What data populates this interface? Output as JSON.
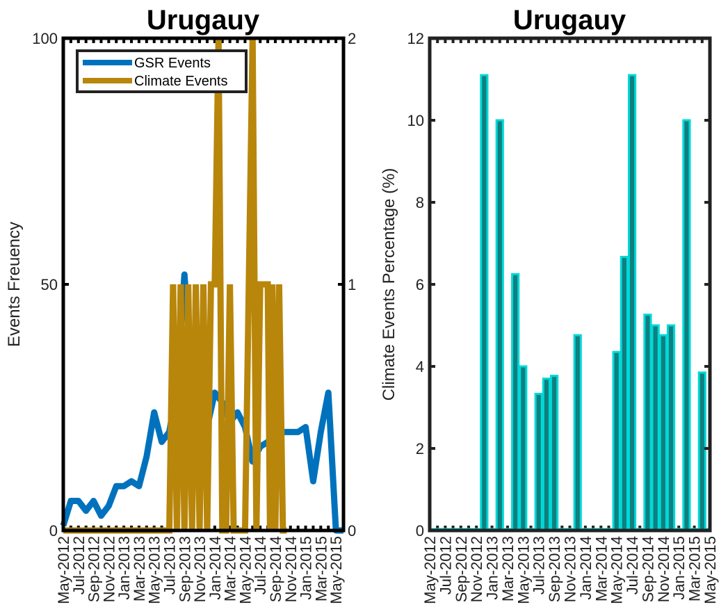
{
  "chart_data": [
    {
      "type": "line",
      "title": "Urugauy",
      "ylabel": "Events Freuency",
      "ylim": [
        0,
        100
      ],
      "yticks": [
        "0",
        "50",
        "100"
      ],
      "y2lim": [
        0,
        2
      ],
      "y2ticks": [
        "0",
        "1",
        "2"
      ],
      "xtick_labels": [
        "May-2012",
        "Jul-2012",
        "Sep-2012",
        "Nov-2012",
        "Jan-2013",
        "Mar-2013",
        "May-2013",
        "Jul-2013",
        "Sep-2013",
        "Nov-2013",
        "Jan-2014",
        "Mar-2014",
        "May-2014",
        "Jul-2014",
        "Sep-2014",
        "Nov-2014",
        "Jan-2015",
        "Mar-2015",
        "May-2015"
      ],
      "legend": {
        "position": "top-left",
        "entries": [
          "GSR Events",
          "Climate Events"
        ]
      },
      "series": [
        {
          "name": "GSR Events",
          "axis": "left",
          "color": "#0072bd",
          "values": [
            1,
            6,
            6,
            4,
            6,
            3,
            5,
            9,
            9,
            10,
            9,
            15,
            24,
            18,
            20,
            29,
            52,
            30,
            25,
            21,
            28,
            26,
            22,
            24,
            21,
            14,
            17,
            18,
            19,
            20,
            20,
            20,
            21,
            10,
            20,
            28,
            0,
            0
          ]
        },
        {
          "name": "Climate Events",
          "axis": "right",
          "color": "#b8860b",
          "points": [
            [
              0,
              0
            ],
            [
              14,
              0
            ],
            [
              14.5,
              1
            ],
            [
              15,
              0
            ],
            [
              15.5,
              1
            ],
            [
              16,
              0
            ],
            [
              16.5,
              1
            ],
            [
              17,
              0
            ],
            [
              17.5,
              1
            ],
            [
              18,
              0
            ],
            [
              18.5,
              1
            ],
            [
              19,
              0
            ],
            [
              19.5,
              1
            ],
            [
              20,
              1
            ],
            [
              20.5,
              2
            ],
            [
              21,
              0
            ],
            [
              21.5,
              0
            ],
            [
              22,
              1
            ],
            [
              22.5,
              0
            ],
            [
              23,
              0
            ],
            [
              24,
              0
            ],
            [
              24.5,
              1
            ],
            [
              25,
              2
            ],
            [
              25.5,
              0
            ],
            [
              26,
              1
            ],
            [
              27,
              1
            ],
            [
              27.3,
              0
            ],
            [
              27.6,
              1
            ],
            [
              28,
              0
            ],
            [
              28.5,
              1
            ],
            [
              29,
              0
            ],
            [
              29.5,
              0
            ]
          ]
        }
      ]
    },
    {
      "type": "bar",
      "title": "Urugauy",
      "ylabel": "Climate Events Percentage (%)",
      "ylim": [
        0,
        12
      ],
      "yticks": [
        "0",
        "2",
        "4",
        "6",
        "8",
        "10",
        "12"
      ],
      "xtick_labels": [
        "May-2012",
        "Jul-2012",
        "Sep-2012",
        "Nov-2012",
        "Jan-2013",
        "Mar-2013",
        "May-2013",
        "Jul-2013",
        "Sep-2013",
        "Nov-2013",
        "Jan-2014",
        "Mar-2014",
        "May-2014",
        "Jul-2014",
        "Sep-2014",
        "Nov-2014",
        "Jan-2015",
        "Mar-2015",
        "May-2015"
      ],
      "bar_color": "#00d8d8",
      "values": [
        0,
        0,
        0,
        0,
        0,
        0,
        0,
        11.1,
        0,
        10,
        0,
        6.25,
        4,
        0,
        3.33,
        3.7,
        3.77,
        0,
        0,
        4.76,
        0,
        0,
        0,
        0,
        4.35,
        6.67,
        11.1,
        0,
        5.26,
        5,
        4.76,
        5,
        0,
        10,
        0,
        3.85,
        0
      ]
    }
  ]
}
